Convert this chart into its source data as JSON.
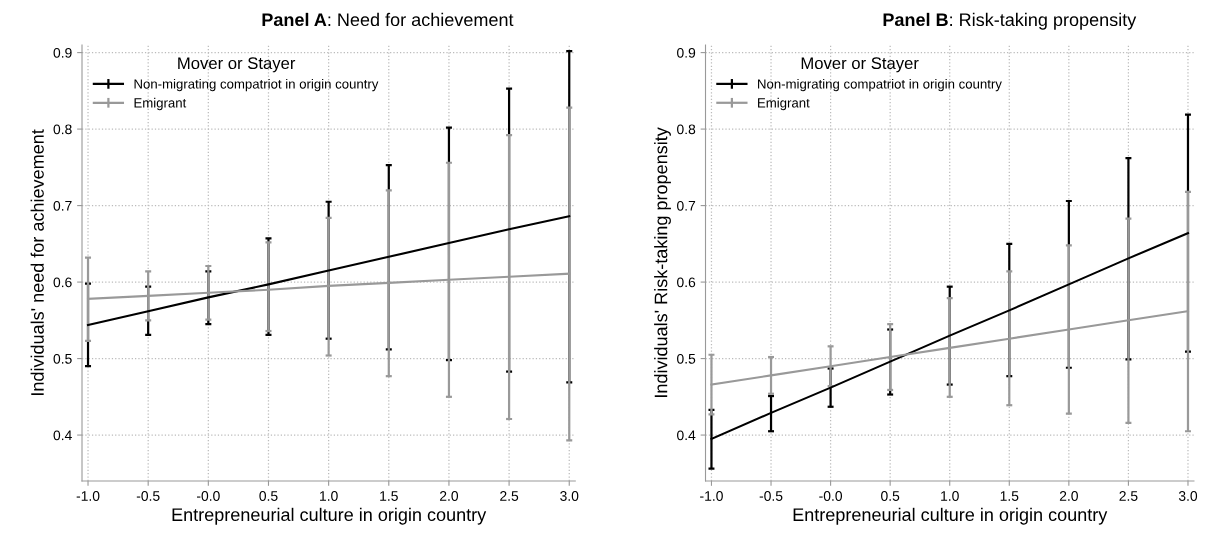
{
  "chart_data": [
    {
      "type": "line",
      "title": "Panel A: Need for achievement",
      "xlabel": "Entrepreneurial culture in origin country",
      "ylabel": "Individuals' need for achievement",
      "legend_title": "Mover or Stayer",
      "legend": "top left",
      "grid": true,
      "marker": "none",
      "line_style": "solid",
      "x": [
        -1.0,
        -0.5,
        0.0,
        0.5,
        1.0,
        1.5,
        2.0,
        2.5,
        3.0
      ],
      "xlim": [
        -1.05,
        3.05
      ],
      "xticks": [
        {
          "value": -1,
          "label": "-1.0"
        },
        -0.5,
        {
          "value": 0,
          "label": "-0.0"
        },
        0.5,
        {
          "value": 1,
          "label": "1.0"
        },
        1.5,
        {
          "value": 2,
          "label": "2.0"
        },
        2.5,
        {
          "value": 3,
          "label": "3.0"
        }
      ],
      "ylim": [
        0.34,
        0.91
      ],
      "yticks": [
        0.4,
        0.5,
        0.6,
        0.7,
        0.8,
        0.9
      ],
      "series": [
        {
          "name": "Non-migrating compatriot in origin country",
          "color": "#000000",
          "values": [
            0.544,
            0.562,
            0.58,
            0.597,
            0.615,
            0.633,
            0.651,
            0.669,
            0.686
          ],
          "errors": [
            [
              0.49,
              0.598
            ],
            [
              0.531,
              0.594
            ],
            [
              0.545,
              0.614
            ],
            [
              0.531,
              0.657
            ],
            [
              0.526,
              0.705
            ],
            [
              0.512,
              0.753
            ],
            [
              0.498,
              0.802
            ],
            [
              0.483,
              0.853
            ],
            [
              0.469,
              0.902
            ]
          ]
        },
        {
          "name": "Emigrant",
          "color": "#999999",
          "values": [
            0.578,
            0.582,
            0.586,
            0.59,
            0.595,
            0.599,
            0.603,
            0.607,
            0.611
          ],
          "errors": [
            [
              0.523,
              0.632
            ],
            [
              0.55,
              0.614
            ],
            [
              0.551,
              0.621
            ],
            [
              0.536,
              0.652
            ],
            [
              0.504,
              0.684
            ],
            [
              0.477,
              0.72
            ],
            [
              0.45,
              0.756
            ],
            [
              0.421,
              0.792
            ],
            [
              0.393,
              0.828
            ]
          ]
        }
      ]
    },
    {
      "type": "line",
      "title": "Panel B: Risk-taking propensity",
      "xlabel": "Entrepreneurial culture in origin country",
      "ylabel": "Individuals' Risk-taking propensity",
      "legend_title": "Mover or Stayer",
      "legend": "top left",
      "grid": true,
      "marker": "none",
      "line_style": "solid",
      "x": [
        -1.0,
        -0.5,
        0.0,
        0.5,
        1.0,
        1.5,
        2.0,
        2.5,
        3.0
      ],
      "xlim": [
        -1.05,
        3.05
      ],
      "xticks": [
        {
          "value": -1,
          "label": "-1.0"
        },
        -0.5,
        {
          "value": 0,
          "label": "-0.0"
        },
        0.5,
        {
          "value": 1,
          "label": "1.0"
        },
        1.5,
        {
          "value": 2,
          "label": "2.0"
        },
        2.5,
        {
          "value": 3,
          "label": "3.0"
        }
      ],
      "ylim": [
        0.34,
        0.91
      ],
      "yticks": [
        0.4,
        0.5,
        0.6,
        0.7,
        0.8,
        0.9
      ],
      "series": [
        {
          "name": "Non-migrating compatriot in origin country",
          "color": "#000000",
          "values": [
            0.395,
            0.429,
            0.462,
            0.496,
            0.53,
            0.563,
            0.597,
            0.631,
            0.664
          ],
          "errors": [
            [
              0.356,
              0.433
            ],
            [
              0.405,
              0.451
            ],
            [
              0.437,
              0.487
            ],
            [
              0.453,
              0.538
            ],
            [
              0.466,
              0.594
            ],
            [
              0.477,
              0.65
            ],
            [
              0.488,
              0.706
            ],
            [
              0.499,
              0.762
            ],
            [
              0.509,
              0.819
            ]
          ]
        },
        {
          "name": "Emigrant",
          "color": "#999999",
          "values": [
            0.466,
            0.478,
            0.49,
            0.502,
            0.514,
            0.526,
            0.538,
            0.55,
            0.562
          ],
          "errors": [
            [
              0.427,
              0.505
            ],
            [
              0.454,
              0.502
            ],
            [
              0.464,
              0.516
            ],
            [
              0.459,
              0.545
            ],
            [
              0.45,
              0.579
            ],
            [
              0.439,
              0.614
            ],
            [
              0.428,
              0.648
            ],
            [
              0.416,
              0.683
            ],
            [
              0.405,
              0.718
            ]
          ]
        }
      ]
    }
  ]
}
